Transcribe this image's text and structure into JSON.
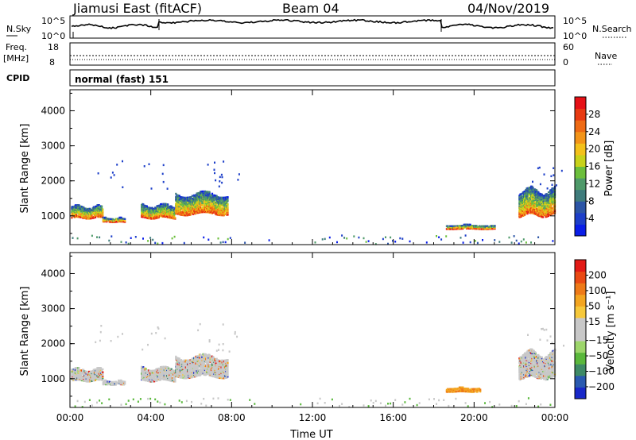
{
  "header": {
    "station": "Jiamusi East (fitACF)",
    "beam": "Beam 04",
    "date": "04/Nov/2019"
  },
  "noise_panel": {
    "left_label": "N.Sky",
    "right_label": "N.Search",
    "left_ticks": [
      "10^5",
      "10^0"
    ],
    "right_ticks": [
      "10^5",
      "10^0"
    ]
  },
  "freq_panel": {
    "left_label_1": "Freq.",
    "left_label_2": "[MHz]",
    "left_ticks": [
      "18",
      "8"
    ],
    "right_label": "Nave",
    "right_ticks": [
      "60",
      "0"
    ]
  },
  "cpid": {
    "label": "CPID",
    "value": "normal (fast) 151"
  },
  "chart_data": [
    {
      "type": "heatmap",
      "parameter": "Power",
      "ylabel": "Slant Range [km]",
      "xlabel": "Time UT",
      "ylim": [
        180,
        4600
      ],
      "yticks": [
        "4000",
        "3000",
        "2000",
        "1000"
      ],
      "xticks": [
        "00:00",
        "04:00",
        "08:00",
        "12:00",
        "16:00",
        "20:00",
        "00:00"
      ],
      "colorbar": {
        "label": "Power [dB]",
        "ticks": [
          "28",
          "24",
          "20",
          "16",
          "12",
          "8",
          "4"
        ],
        "range": [
          0,
          32
        ],
        "colors": [
          "#0a1ee8",
          "#1d3fc9",
          "#2c55a6",
          "#3f7c7c",
          "#4f9a6a",
          "#6cbf3c",
          "#c8d21a",
          "#f3c11a",
          "#f39418",
          "#ee6a14",
          "#e83a12",
          "#e61016"
        ]
      },
      "echo_regions": [
        {
          "t_start": 0.05,
          "t_end": 1.6,
          "range_lo": 950,
          "range_hi": 1400
        },
        {
          "t_start": 1.6,
          "t_end": 2.7,
          "range_lo": 850,
          "range_hi": 1000
        },
        {
          "t_start": 3.5,
          "t_end": 5.2,
          "range_lo": 950,
          "range_hi": 1450
        },
        {
          "t_start": 5.2,
          "t_end": 7.8,
          "range_lo": 1050,
          "range_hi": 1850
        },
        {
          "t_start": 18.6,
          "t_end": 21.0,
          "range_lo": 650,
          "range_hi": 800
        },
        {
          "t_start": 22.2,
          "t_end": 24.0,
          "range_lo": 1000,
          "range_hi": 2000
        }
      ]
    },
    {
      "type": "heatmap",
      "parameter": "Velocity",
      "ylabel": "Slant Range [km]",
      "xlabel": "Time UT",
      "ylim": [
        180,
        4600
      ],
      "yticks": [
        "4000",
        "3000",
        "2000",
        "1000"
      ],
      "xticks": [
        "00:00",
        "04:00",
        "08:00",
        "12:00",
        "16:00",
        "20:00",
        "00:00"
      ],
      "colorbar": {
        "label": "Velocity [m s⁻¹]",
        "ticks": [
          "200",
          "100",
          "50",
          "15",
          "−15",
          "−50",
          "−100",
          "−200"
        ],
        "colors": [
          "#1828c8",
          "#2a5ab0",
          "#3e8a66",
          "#5ab83c",
          "#9dd66b",
          "#c8c8c8",
          "#c8c8c8",
          "#f6c83a",
          "#f3a520",
          "#ee7a18",
          "#ea4a14",
          "#e31a16"
        ]
      },
      "echo_regions": [
        {
          "t_start": 0.05,
          "t_end": 1.6,
          "range_lo": 950,
          "range_hi": 1400
        },
        {
          "t_start": 1.6,
          "t_end": 2.7,
          "range_lo": 850,
          "range_hi": 1000
        },
        {
          "t_start": 3.5,
          "t_end": 5.2,
          "range_lo": 950,
          "range_hi": 1450
        },
        {
          "t_start": 5.2,
          "t_end": 7.8,
          "range_lo": 1050,
          "range_hi": 1850
        },
        {
          "t_start": 18.6,
          "t_end": 20.3,
          "range_lo": 650,
          "range_hi": 800
        },
        {
          "t_start": 22.2,
          "t_end": 24.0,
          "range_lo": 1000,
          "range_hi": 2000
        }
      ]
    }
  ]
}
